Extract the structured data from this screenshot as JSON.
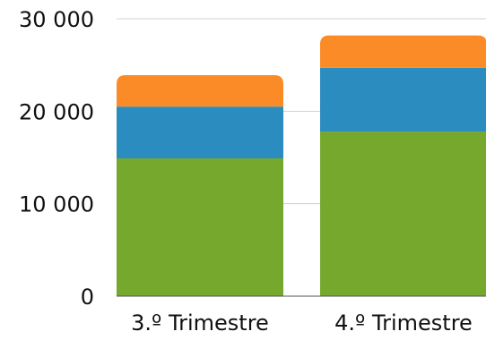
{
  "chart_data": {
    "type": "bar",
    "stacked": true,
    "categories": [
      "3.º Trimestre",
      "4.º Trimestre"
    ],
    "series": [
      {
        "color": "#77a82e",
        "values": [
          14900,
          17800
        ]
      },
      {
        "color": "#2b8cbf",
        "values": [
          5600,
          6900
        ]
      },
      {
        "color": "#fb8b26",
        "values": [
          3400,
          3500
        ]
      }
    ],
    "ylim": [
      0,
      30000
    ],
    "yticks": [
      0,
      10000,
      20000,
      30000
    ],
    "ytick_labels": [
      "0",
      "10 000",
      "20 000",
      "30 000"
    ],
    "grid": true,
    "legend": "none"
  }
}
